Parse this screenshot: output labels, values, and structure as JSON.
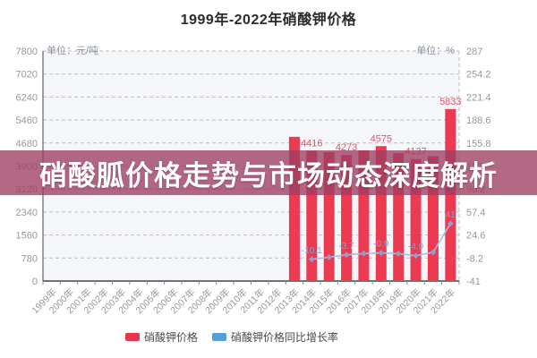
{
  "window": {
    "title": "1999年-2022年硝酸钾价格"
  },
  "banner": {
    "text": "硝酸胍价格走势与市场动态深度解析"
  },
  "legend": {
    "items": [
      {
        "label": "硝酸钾价格",
        "color": "#e8374d"
      },
      {
        "label": "硝酸钾价格同比增长率",
        "color": "#559fd9"
      }
    ]
  },
  "colors": {
    "bar": "#ec3b50",
    "bar_label": "#e4576a",
    "line": "#aabdde",
    "marker": "#8e9fd0",
    "line_label": "#7fa3d8",
    "grid": "#bfbfbf",
    "axis": "#444444",
    "tick_text": "#999999",
    "plot_bg": "#f5f6f9",
    "banner_bg": "rgba(158,62,97,0.78)",
    "banner_text": "#ffffff",
    "title_text": "#2b2b2b"
  },
  "chart_data": {
    "type": "bar",
    "title": "1999年-2022年硝酸钾价格",
    "categories": [
      "1999年",
      "2000年",
      "2001年",
      "2002年",
      "2003年",
      "2004年",
      "2005年",
      "2006年",
      "2007年",
      "2008年",
      "2009年",
      "2010年",
      "2011年",
      "2012年",
      "2013年",
      "2014年",
      "2015年",
      "2016年",
      "2017年",
      "2018年",
      "2019年",
      "2020年",
      "2021年",
      "2022年"
    ],
    "left_axis": {
      "unit": "单位：元/吨",
      "min": 0,
      "max": 7800,
      "ticks": [
        0,
        780,
        1560,
        2340,
        3120,
        3900,
        4680,
        5460,
        6240,
        7020,
        7800
      ],
      "tick_labels": [
        "0",
        "780",
        "1560",
        "2340",
        "3120",
        "3900",
        "4680",
        "5460",
        "6240",
        "7020",
        "7800"
      ]
    },
    "right_axis": {
      "unit": "单位：%",
      "min": -41,
      "max": 287,
      "ticks": [
        -41,
        -8.2,
        24.6,
        57.4,
        90.2,
        123,
        155.8,
        188.6,
        221.4,
        254.2,
        287
      ],
      "tick_labels": [
        "-41",
        "-8.2",
        "24.6",
        "57.4",
        "90.2",
        "123",
        "155.8",
        "188.6",
        "221.4",
        "254.2",
        "287"
      ]
    },
    "series": [
      {
        "name": "硝酸钾价格",
        "type": "bar",
        "axis": "left",
        "color": "#ec3b50",
        "values": [
          null,
          null,
          null,
          null,
          null,
          null,
          null,
          null,
          null,
          null,
          null,
          null,
          null,
          null,
          4890,
          4416,
          4370,
          4273,
          4430,
          4575,
          4340,
          4137,
          4230,
          5833
        ],
        "point_labels": [
          {
            "category": "2014年",
            "text": "4416"
          },
          {
            "category": "2016年",
            "text": "4273"
          },
          {
            "category": "2018年",
            "text": "4575"
          },
          {
            "category": "2020年",
            "text": "4137"
          },
          {
            "category": "2022年",
            "text": "5833"
          }
        ]
      },
      {
        "name": "硝酸钾价格同比增长率",
        "type": "line",
        "axis": "right",
        "color": "#aabdde",
        "values": [
          null,
          null,
          null,
          null,
          null,
          null,
          null,
          null,
          null,
          null,
          null,
          null,
          null,
          null,
          null,
          -10.1,
          -7.0,
          -3.7,
          -1.8,
          -0.9,
          -2.0,
          -4.9,
          0,
          41
        ],
        "point_labels": [
          {
            "category": "2014年",
            "text": "-10.1"
          },
          {
            "category": "2016年",
            "text": "-3.7"
          },
          {
            "category": "2018年",
            "text": "-0.9"
          },
          {
            "category": "2020年",
            "text": "-4.9"
          },
          {
            "category": "2022年",
            "text": "41"
          }
        ]
      }
    ],
    "legend_position": "bottom",
    "grid": "horizontal-dashed"
  }
}
